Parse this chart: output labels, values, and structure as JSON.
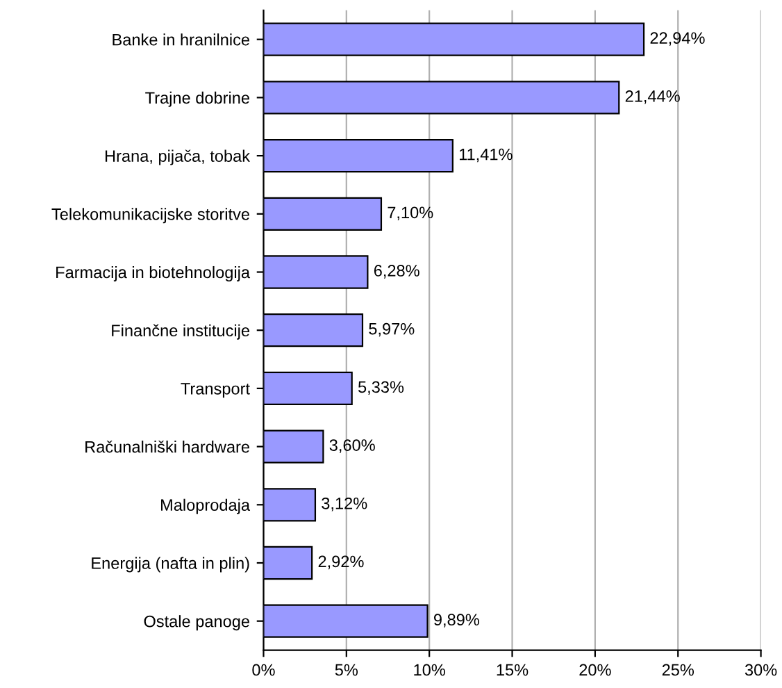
{
  "chart_data": {
    "type": "bar",
    "orientation": "horizontal",
    "categories": [
      "Banke in hranilnice",
      "Trajne dobrine",
      "Hrana, pijača, tobak",
      "Telekomunikacijske storitve",
      "Farmacija in biotehnologija",
      "Finančne institucije",
      "Transport",
      "Računalniški hardware",
      "Maloprodaja",
      "Energija (nafta in plin)",
      "Ostale panoge"
    ],
    "values": [
      22.94,
      21.44,
      11.41,
      7.1,
      6.28,
      5.97,
      5.33,
      3.6,
      3.12,
      2.92,
      9.89
    ],
    "value_labels": [
      "22,94%",
      "21,44%",
      "11,41%",
      "7,10%",
      "6,28%",
      "5,97%",
      "5,33%",
      "3,60%",
      "3,12%",
      "2,92%",
      "9,89%"
    ],
    "color": "#9999ff",
    "xlim": [
      0,
      30
    ],
    "xticks": [
      {
        "value": 0,
        "label": "0%"
      },
      {
        "value": 5,
        "label": "5%"
      },
      {
        "value": 10,
        "label": "10%"
      },
      {
        "value": 15,
        "label": "15%"
      },
      {
        "value": 20,
        "label": "20%"
      },
      {
        "value": 25,
        "label": "25%"
      },
      {
        "value": 30,
        "label": "30%"
      }
    ],
    "grid": "x",
    "legend": false
  }
}
